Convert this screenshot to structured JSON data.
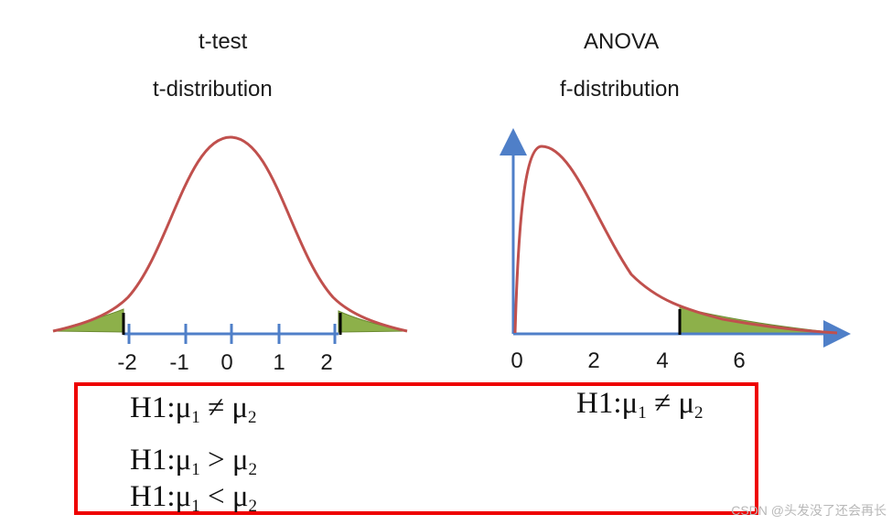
{
  "left_panel": {
    "title": "t-test",
    "subtitle": "t-distribution",
    "ticks": [
      "-2",
      "-1",
      "0",
      "1",
      "2"
    ]
  },
  "right_panel": {
    "title": "ANOVA",
    "subtitle": "f-distribution",
    "ticks": [
      "0",
      "2",
      "4",
      "6"
    ]
  },
  "hypotheses": {
    "h_prefix": "H1:",
    "mu": "μ",
    "sub1": "1",
    "sub2": "2",
    "two_tailed": "≠",
    "right_tailed": ">",
    "left_tailed": "<"
  },
  "watermark": "CSDN @头发没了还会再长",
  "colors": {
    "curve": "#c0504d",
    "tail_fill": "#8db04a",
    "axis": "#4f7fc8",
    "box": "#ee0000"
  }
}
